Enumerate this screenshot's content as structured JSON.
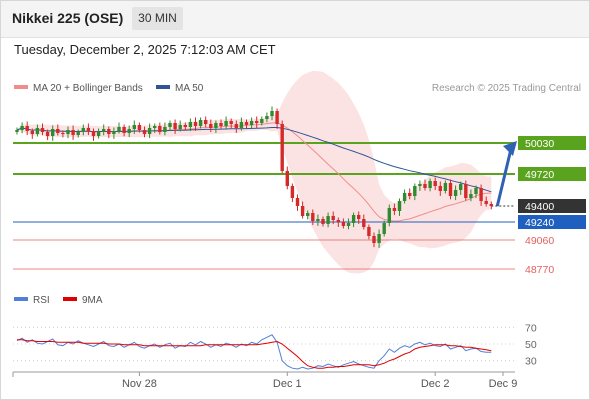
{
  "header": {
    "symbol": "Nikkei 225 (OSE)",
    "timeframe": "30 MIN"
  },
  "timestamp": "Tuesday, December 2, 2025 7:12:03 AM CET",
  "legend": {
    "bb_label": "MA 20 + Bollinger Bands",
    "ma50_label": "MA 50",
    "bb_color": "#f28c8c",
    "ma50_color": "#2f5597"
  },
  "credit": "Research © 2025 Trading Central",
  "rsi_legend": {
    "rsi_label": "RSI",
    "ma_label": "9MA",
    "rsi_color": "#4f7fd9",
    "ma_color": "#e00000"
  },
  "chart_data": [
    {
      "type": "candlestick",
      "x_labels": [
        "Nov 28",
        "Dec 1",
        "Dec 2",
        "Dec 9"
      ],
      "ylim": [
        48600,
        50450
      ],
      "price_levels": [
        {
          "value": 50030,
          "label": "50030",
          "kind": "resistance",
          "color": "#5aa31e"
        },
        {
          "value": 49720,
          "label": "49720",
          "kind": "resistance",
          "color": "#5aa31e"
        },
        {
          "value": 49400,
          "label": "49400",
          "kind": "last",
          "color": "#333333"
        },
        {
          "value": 49240,
          "label": "49240",
          "kind": "pivot",
          "color": "#1f5fbf"
        },
        {
          "value": 49060,
          "label": "49060",
          "kind": "support",
          "color": "#e26060"
        },
        {
          "value": 48770,
          "label": "48770",
          "kind": "support",
          "color": "#e26060"
        }
      ],
      "closes": [
        50160,
        50200,
        50150,
        50120,
        50180,
        50140,
        50100,
        50170,
        50130,
        50120,
        50160,
        50110,
        50140,
        50180,
        50150,
        50100,
        50140,
        50170,
        50120,
        50150,
        50190,
        50130,
        50170,
        50210,
        50160,
        50120,
        50180,
        50200,
        50140,
        50190,
        50230,
        50170,
        50210,
        50190,
        50240,
        50200,
        50260,
        50220,
        50180,
        50230,
        50200,
        50250,
        50220,
        50180,
        50240,
        50210,
        50250,
        50230,
        50270,
        50300,
        50350,
        50220,
        49750,
        49600,
        49480,
        49400,
        49300,
        49330,
        49250,
        49270,
        49220,
        49300,
        49260,
        49240,
        49200,
        49230,
        49310,
        49270,
        49190,
        49100,
        49030,
        49120,
        49230,
        49380,
        49350,
        49450,
        49530,
        49500,
        49600,
        49620,
        49580,
        49650,
        49600,
        49550,
        49630,
        49500,
        49560,
        49620,
        49480,
        49520,
        49580,
        49450,
        49420,
        49400
      ],
      "ma20_bollinger": "MA 20 with Bollinger Bands (shaded)",
      "ma50": "MA 50",
      "projection": {
        "from": 49400,
        "to": 50030
      }
    },
    {
      "type": "line",
      "title": "RSI",
      "ylim": [
        20,
        80
      ],
      "ticks": [
        70,
        50,
        30
      ],
      "tick_labels": [
        "70",
        "50",
        "30"
      ],
      "series": [
        {
          "name": "RSI",
          "values": [
            54,
            57,
            52,
            55,
            51,
            50,
            53,
            56,
            49,
            48,
            52,
            50,
            54,
            51,
            49,
            47,
            50,
            53,
            48,
            47,
            50,
            46,
            49,
            52,
            47,
            45,
            48,
            50,
            46,
            49,
            51,
            45,
            48,
            47,
            52,
            49,
            53,
            50,
            46,
            49,
            47,
            51,
            49,
            46,
            50,
            48,
            52,
            50,
            55,
            58,
            61,
            52,
            30,
            24,
            21,
            20,
            22,
            20,
            21,
            24,
            23,
            26,
            24,
            22,
            25,
            27,
            29,
            26,
            24,
            22,
            21,
            30,
            36,
            44,
            40,
            45,
            48,
            46,
            50,
            52,
            49,
            51,
            48,
            47,
            50,
            44,
            46,
            48,
            42,
            44,
            45,
            41,
            40,
            40
          ]
        },
        {
          "name": "9MA",
          "values": [
            55,
            55,
            54,
            54,
            53,
            53,
            53,
            53,
            52,
            52,
            52,
            52,
            52,
            51,
            51,
            51,
            51,
            51,
            50,
            50,
            50,
            49,
            49,
            49,
            49,
            48,
            48,
            48,
            48,
            48,
            48,
            48,
            48,
            48,
            48,
            48,
            48,
            49,
            49,
            49,
            49,
            49,
            49,
            49,
            49,
            49,
            49,
            49,
            50,
            51,
            52,
            53,
            50,
            45,
            40,
            35,
            29,
            24,
            22,
            21,
            21,
            22,
            22,
            23,
            23,
            24,
            25,
            25,
            25,
            25,
            24,
            25,
            27,
            30,
            32,
            35,
            38,
            40,
            44,
            46,
            47,
            48,
            49,
            49,
            49,
            48,
            48,
            47,
            46,
            46,
            45,
            44,
            43,
            42
          ]
        }
      ]
    }
  ]
}
